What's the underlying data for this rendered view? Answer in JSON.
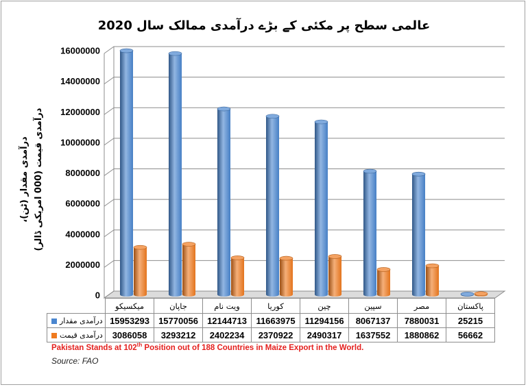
{
  "colors": {
    "frame": "#a0a0a0",
    "grid": "#8c8c8c",
    "floor": "#dcdcdc",
    "note_red": "#e4201e"
  },
  "chart_data": {
    "type": "bar",
    "style": "3d-column",
    "title": "عالمی سطح پر مکئی کے بڑے درآمدی ممالک سال 2020",
    "ylabel": [
      "درآمدی مقدار (ٹن)،",
      "درآمدی قیمت (000 امریکی ڈالر)"
    ],
    "categories": [
      "میکسیکو",
      "جاپان",
      "ویت نام",
      "کوریا",
      "چین",
      "سپین",
      "مصر",
      "پاکستان"
    ],
    "series": [
      {
        "name": "درآمدی مقدار",
        "color": "#4a86cf",
        "values": [
          15953293,
          15770056,
          12144713,
          11663975,
          11294156,
          8067137,
          7880031,
          25215
        ]
      },
      {
        "name": "درآمدی قیمت",
        "color": "#ef7a1f",
        "values": [
          3086058,
          3293212,
          2402234,
          2370922,
          2490317,
          1637552,
          1880862,
          56662
        ]
      }
    ],
    "ylim": [
      0,
      16000000
    ],
    "yticks": [
      0,
      2000000,
      4000000,
      6000000,
      8000000,
      10000000,
      12000000,
      14000000,
      16000000
    ],
    "grid": true,
    "legend": "data-table"
  },
  "footer": {
    "note_before": "Pakistan Stands at 102",
    "note_sup": "th",
    "note_after": " Position out of 188 Countries in Maize Export in the World.",
    "source": "Source: FAO"
  }
}
